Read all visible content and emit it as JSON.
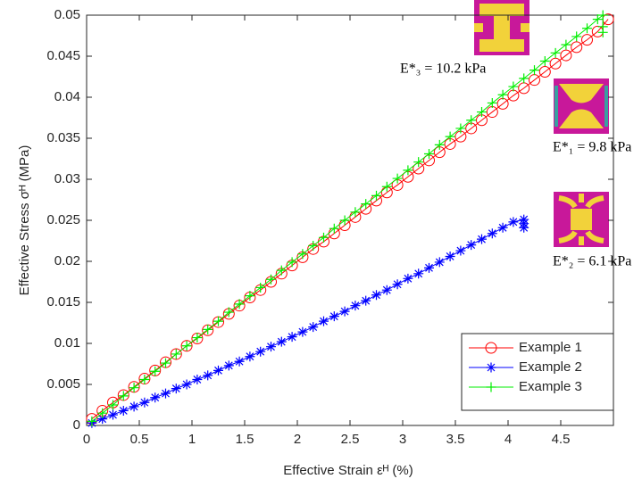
{
  "chart_data": {
    "type": "line",
    "xlabel": "Effective Strain εᴴ (%)",
    "ylabel": "Effective Stress σᴴ (MPa)",
    "xlim": [
      0,
      5
    ],
    "ylim": [
      0,
      0.05
    ],
    "xticks": [
      0,
      0.5,
      1,
      1.5,
      2,
      2.5,
      3,
      3.5,
      4,
      4.5
    ],
    "yticks": [
      0,
      0.005,
      0.01,
      0.015,
      0.02,
      0.025,
      0.03,
      0.035,
      0.04,
      0.045,
      0.05
    ],
    "grid": false,
    "legend": "southeast",
    "annotations": [
      {
        "text": "E*₃ = 10.2 kPa"
      },
      {
        "text": "E*₁ = 9.8 kPa"
      },
      {
        "text": "E*₂ = 6.1 kPa"
      }
    ],
    "series": [
      {
        "name": "Example 1",
        "color": "#ff0000",
        "marker": "circle",
        "x": [
          0.05,
          0.15,
          0.25,
          0.35,
          0.45,
          0.55,
          0.65,
          0.75,
          0.85,
          0.95,
          1.05,
          1.15,
          1.25,
          1.35,
          1.45,
          1.55,
          1.65,
          1.75,
          1.85,
          1.95,
          2.05,
          2.15,
          2.25,
          2.35,
          2.45,
          2.55,
          2.65,
          2.75,
          2.85,
          2.95,
          3.05,
          3.15,
          3.25,
          3.35,
          3.45,
          3.55,
          3.65,
          3.75,
          3.85,
          3.95,
          4.05,
          4.15,
          4.25,
          4.35,
          4.45,
          4.55,
          4.65,
          4.75,
          4.85,
          4.95
        ],
        "values": [
          0.0008,
          0.0018,
          0.0028,
          0.0037,
          0.0047,
          0.0057,
          0.0067,
          0.0077,
          0.0087,
          0.0097,
          0.0106,
          0.0116,
          0.0126,
          0.0136,
          0.0146,
          0.0156,
          0.0165,
          0.0175,
          0.0185,
          0.0195,
          0.0205,
          0.0215,
          0.0224,
          0.0234,
          0.0244,
          0.0254,
          0.0264,
          0.0274,
          0.0284,
          0.0293,
          0.0303,
          0.0313,
          0.0323,
          0.0333,
          0.0343,
          0.0352,
          0.0362,
          0.0372,
          0.0382,
          0.0392,
          0.0402,
          0.0411,
          0.0421,
          0.0431,
          0.0441,
          0.0451,
          0.0461,
          0.047,
          0.048,
          0.0495
        ]
      },
      {
        "name": "Example 2",
        "color": "#0000ff",
        "marker": "asterisk",
        "x": [
          0.05,
          0.15,
          0.25,
          0.35,
          0.45,
          0.55,
          0.65,
          0.75,
          0.85,
          0.95,
          1.05,
          1.15,
          1.25,
          1.35,
          1.45,
          1.55,
          1.65,
          1.75,
          1.85,
          1.95,
          2.05,
          2.15,
          2.25,
          2.35,
          2.45,
          2.55,
          2.65,
          2.75,
          2.85,
          2.95,
          3.05,
          3.15,
          3.25,
          3.35,
          3.45,
          3.55,
          3.65,
          3.75,
          3.85,
          3.95,
          4.05,
          4.15,
          4.15,
          4.15
        ],
        "values": [
          0.0003,
          0.0008,
          0.0013,
          0.0018,
          0.0023,
          0.0028,
          0.0034,
          0.0039,
          0.0045,
          0.005,
          0.0056,
          0.0061,
          0.0067,
          0.0073,
          0.0078,
          0.0084,
          0.009,
          0.0096,
          0.0102,
          0.0108,
          0.0114,
          0.012,
          0.0127,
          0.0133,
          0.0139,
          0.0146,
          0.0152,
          0.0159,
          0.0165,
          0.0172,
          0.0179,
          0.0185,
          0.0192,
          0.0199,
          0.0206,
          0.0213,
          0.022,
          0.0227,
          0.0234,
          0.0241,
          0.0248,
          0.0251,
          0.0246,
          0.0241
        ]
      },
      {
        "name": "Example 3",
        "color": "#00ee00",
        "marker": "plus",
        "x": [
          0.05,
          0.15,
          0.25,
          0.35,
          0.45,
          0.55,
          0.65,
          0.75,
          0.85,
          0.95,
          1.05,
          1.15,
          1.25,
          1.35,
          1.45,
          1.55,
          1.65,
          1.75,
          1.85,
          1.95,
          2.05,
          2.15,
          2.25,
          2.35,
          2.45,
          2.55,
          2.65,
          2.75,
          2.85,
          2.95,
          3.05,
          3.15,
          3.25,
          3.35,
          3.45,
          3.55,
          3.65,
          3.75,
          3.85,
          3.95,
          4.05,
          4.15,
          4.25,
          4.35,
          4.45,
          4.55,
          4.65,
          4.75,
          4.85,
          4.9,
          4.9,
          4.9
        ],
        "values": [
          0.0005,
          0.0015,
          0.0025,
          0.0036,
          0.0046,
          0.0056,
          0.0066,
          0.0076,
          0.0087,
          0.0097,
          0.0107,
          0.0117,
          0.0127,
          0.0138,
          0.0148,
          0.0158,
          0.0168,
          0.0178,
          0.0189,
          0.0199,
          0.0209,
          0.0219,
          0.0229,
          0.024,
          0.025,
          0.026,
          0.027,
          0.028,
          0.0291,
          0.0301,
          0.0311,
          0.0321,
          0.0331,
          0.0342,
          0.0352,
          0.0362,
          0.0372,
          0.0382,
          0.0393,
          0.0403,
          0.0413,
          0.0423,
          0.0433,
          0.0444,
          0.0454,
          0.0464,
          0.0474,
          0.0484,
          0.0495,
          0.05,
          0.0486,
          0.0479
        ]
      }
    ]
  }
}
